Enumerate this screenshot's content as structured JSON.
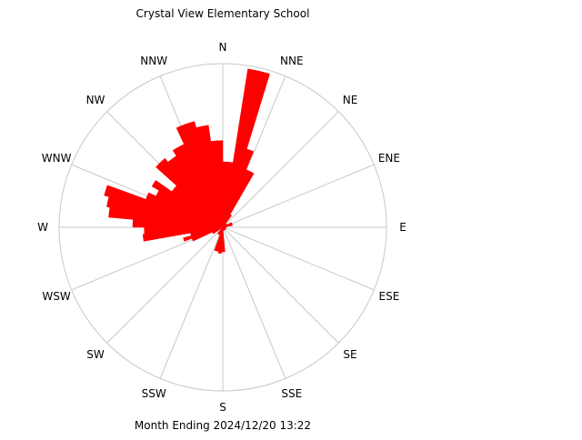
{
  "chart_data": {
    "type": "polar-bar",
    "title": "Crystal View Elementary School",
    "footer": "Month Ending 2024/12/20 13:22",
    "directions": [
      "N",
      "NNE",
      "NE",
      "ENE",
      "E",
      "ESE",
      "SE",
      "SSE",
      "S",
      "SSW",
      "SW",
      "WSW",
      "W",
      "WNW",
      "NW",
      "NNW"
    ],
    "bins": [
      {
        "start": 0,
        "end": 9,
        "r": 0.4
      },
      {
        "start": 9,
        "end": 17,
        "r": 0.98
      },
      {
        "start": 17,
        "end": 22,
        "r": 0.5
      },
      {
        "start": 22,
        "end": 30,
        "r": 0.38
      },
      {
        "start": 30,
        "end": 37,
        "r": 0.09
      },
      {
        "start": 37,
        "end": 60,
        "r": 0.03
      },
      {
        "start": 60,
        "end": 80,
        "r": 0.06
      },
      {
        "start": 80,
        "end": 100,
        "r": 0.02
      },
      {
        "start": 100,
        "end": 175,
        "r": 0.02
      },
      {
        "start": 175,
        "end": 183,
        "r": 0.15
      },
      {
        "start": 183,
        "end": 190,
        "r": 0.16
      },
      {
        "start": 190,
        "end": 200,
        "r": 0.15
      },
      {
        "start": 200,
        "end": 220,
        "r": 0.05
      },
      {
        "start": 235,
        "end": 245,
        "r": 0.07
      },
      {
        "start": 245,
        "end": 250,
        "r": 0.2
      },
      {
        "start": 250,
        "end": 255,
        "r": 0.25
      },
      {
        "start": 255,
        "end": 260,
        "r": 0.2
      },
      {
        "start": 260,
        "end": 265,
        "r": 0.49
      },
      {
        "start": 265,
        "end": 270,
        "r": 0.48
      },
      {
        "start": 270,
        "end": 275,
        "r": 0.55
      },
      {
        "start": 275,
        "end": 280,
        "r": 0.7
      },
      {
        "start": 280,
        "end": 285,
        "r": 0.72
      },
      {
        "start": 285,
        "end": 290,
        "r": 0.75
      },
      {
        "start": 290,
        "end": 295,
        "r": 0.5
      },
      {
        "start": 295,
        "end": 300,
        "r": 0.45
      },
      {
        "start": 300,
        "end": 305,
        "r": 0.5
      },
      {
        "start": 305,
        "end": 312,
        "r": 0.38
      },
      {
        "start": 312,
        "end": 320,
        "r": 0.55
      },
      {
        "start": 320,
        "end": 327,
        "r": 0.52
      },
      {
        "start": 327,
        "end": 335,
        "r": 0.56
      },
      {
        "start": 335,
        "end": 345,
        "r": 0.67
      },
      {
        "start": 345,
        "end": 352,
        "r": 0.63
      },
      {
        "start": 352,
        "end": 360,
        "r": 0.53
      }
    ],
    "bar_color": "#ff0000",
    "grid_color": "#c8c8c8",
    "grid": true
  }
}
